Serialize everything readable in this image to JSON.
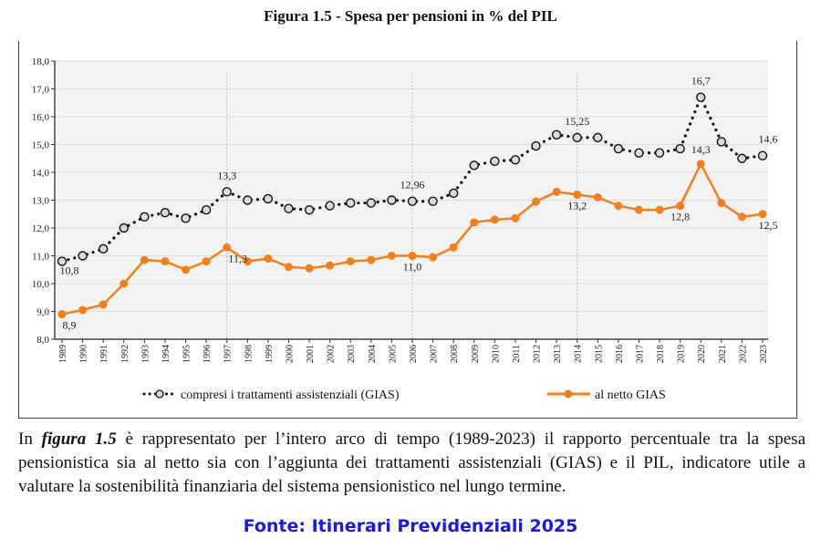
{
  "title": "Figura 1.5 - Spesa per pensioni in % del PIL",
  "chart_data": {
    "type": "line",
    "title": "Figura 1.5 - Spesa per pensioni in % del PIL",
    "x": [
      1989,
      1990,
      1991,
      1992,
      1993,
      1994,
      1995,
      1996,
      1997,
      1998,
      1999,
      2000,
      2001,
      2002,
      2003,
      2004,
      2005,
      2006,
      2007,
      2008,
      2009,
      2010,
      2011,
      2012,
      2013,
      2014,
      2015,
      2016,
      2017,
      2018,
      2019,
      2020,
      2021,
      2022,
      2023
    ],
    "ylim": [
      8.0,
      18.0
    ],
    "yticks": [
      "8,0",
      "9,0",
      "10,0",
      "11,0",
      "12,0",
      "13,0",
      "14,0",
      "15,0",
      "16,0",
      "17,0",
      "18,0"
    ],
    "grid": true,
    "vertical_reference_years": [
      1997,
      2006,
      2014
    ],
    "legend_placement": "bottom",
    "series": [
      {
        "name": "compresi i trattamenti assistenziali (GIAS)",
        "color": "#111111",
        "style": "dotted-open-circle",
        "values": [
          10.8,
          11.0,
          11.25,
          12.0,
          12.4,
          12.55,
          12.35,
          12.65,
          13.3,
          13.0,
          13.05,
          12.7,
          12.65,
          12.8,
          12.9,
          12.9,
          13.0,
          12.96,
          12.96,
          13.25,
          14.25,
          14.4,
          14.45,
          14.95,
          15.35,
          15.25,
          15.25,
          14.85,
          14.7,
          14.7,
          14.85,
          16.7,
          15.1,
          14.5,
          14.6
        ],
        "labels": [
          {
            "year": 1989,
            "text": "10,8"
          },
          {
            "year": 1997,
            "text": "13,3"
          },
          {
            "year": 2006,
            "text": "12,96"
          },
          {
            "year": 2014,
            "text": "15,25"
          },
          {
            "year": 2020,
            "text": "16,7"
          },
          {
            "year": 2023,
            "text": "14,6"
          }
        ]
      },
      {
        "name": "al netto GIAS",
        "color": "#f07f1e",
        "style": "solid-filled-circle",
        "values": [
          8.9,
          9.05,
          9.25,
          10.0,
          10.85,
          10.8,
          10.5,
          10.8,
          11.3,
          10.8,
          10.9,
          10.6,
          10.55,
          10.65,
          10.8,
          10.85,
          11.0,
          11.0,
          10.95,
          11.3,
          12.2,
          12.3,
          12.35,
          12.95,
          13.3,
          13.2,
          13.1,
          12.8,
          12.65,
          12.65,
          12.8,
          14.3,
          12.9,
          12.4,
          12.5
        ],
        "labels": [
          {
            "year": 1989,
            "text": "8,9"
          },
          {
            "year": 1997,
            "text": "11,3"
          },
          {
            "year": 2006,
            "text": "11,0"
          },
          {
            "year": 2014,
            "text": "13,2"
          },
          {
            "year": 2019,
            "text": "12,8"
          },
          {
            "year": 2020,
            "text": "14,3"
          },
          {
            "year": 2023,
            "text": "12,5"
          }
        ]
      }
    ]
  },
  "paragraph": {
    "lead": "In ",
    "emph": "figura 1.5",
    "rest": " è rappresentato per l’intero arco di tempo (1989-2023) il rapporto percentuale tra la spesa pensionistica sia al netto sia con l’aggiunta dei trattamenti assistenziali (GIAS) e il PIL, indicatore utile a valutare la sostenibilità finanziaria del sistema pensionistico nel lungo termine."
  },
  "source": "Fonte: Itinerari Previdenziali 2025"
}
